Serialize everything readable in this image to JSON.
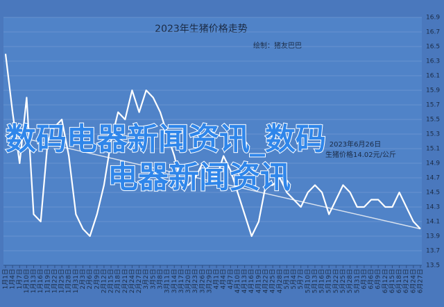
{
  "chart_data": {
    "type": "line",
    "title": "2023年生猪价格走势",
    "subtitle": "绘制：猪友巴巴",
    "annotation": [
      "2023年6月26日",
      "生猪价格14.02元/公斤"
    ],
    "watermark": [
      "数码电器新闻资讯_数码",
      "电器新闻资讯"
    ],
    "categories": [
      "1月1日",
      "1月4日",
      "1月7日",
      "1月10日",
      "1月13日",
      "1月16日",
      "1月19日",
      "1月22日",
      "1月25日",
      "1月28日",
      "1月31日",
      "2月3日",
      "2月6日",
      "2月9日",
      "2月12日",
      "2月15日",
      "2月18日",
      "2月21日",
      "2月24日",
      "2月27日",
      "3月2日",
      "3月5日",
      "3月8日",
      "3月11日",
      "3月14日",
      "3月17日",
      "3月20日",
      "3月23日",
      "3月26日",
      "3月29日",
      "4月1日",
      "4月4日",
      "4月7日",
      "4月10日",
      "4月13日",
      "4月16日",
      "4月19日",
      "4月22日",
      "4月25日",
      "4月28日",
      "5月1日",
      "5月4日",
      "5月7日",
      "5月10日",
      "5月13日",
      "5月16日",
      "5月19日",
      "5月22日",
      "5月25日",
      "5月28日",
      "5月31日",
      "6月3日",
      "6月6日",
      "6月9日",
      "6月12日",
      "6月15日",
      "6月18日",
      "6月21日",
      "6月24日",
      "6月27日"
    ],
    "series": [
      {
        "name": "生猪价格",
        "color": "#ffffff",
        "values": [
          16.4,
          15.6,
          14.9,
          15.8,
          14.2,
          14.1,
          15.2,
          15.4,
          15.5,
          15.0,
          14.2,
          14.0,
          13.9,
          14.2,
          14.6,
          15.2,
          15.6,
          15.5,
          15.9,
          15.6,
          15.9,
          15.8,
          15.6,
          15.3,
          15.0,
          14.6,
          14.6,
          14.7,
          14.9,
          14.8,
          14.7,
          15.0,
          14.8,
          14.5,
          14.2,
          13.9,
          14.1,
          14.6,
          14.6,
          14.7,
          14.5,
          14.4,
          14.3,
          14.5,
          14.6,
          14.5,
          14.2,
          14.4,
          14.6,
          14.5,
          14.3,
          14.3,
          14.4,
          14.4,
          14.3,
          14.3,
          14.5,
          14.3,
          14.1,
          14.0
        ]
      }
    ],
    "trendline": {
      "color": "#d9e2ef",
      "values": [
        15.3,
        14.0
      ]
    },
    "ylim": [
      13.5,
      16.9
    ],
    "yticks": [
      13.5,
      13.7,
      13.9,
      14.1,
      14.3,
      14.5,
      14.7,
      14.9,
      15.1,
      15.3,
      15.5,
      15.7,
      15.9,
      16.1,
      16.3,
      16.5,
      16.7,
      16.9
    ],
    "grid": true
  }
}
